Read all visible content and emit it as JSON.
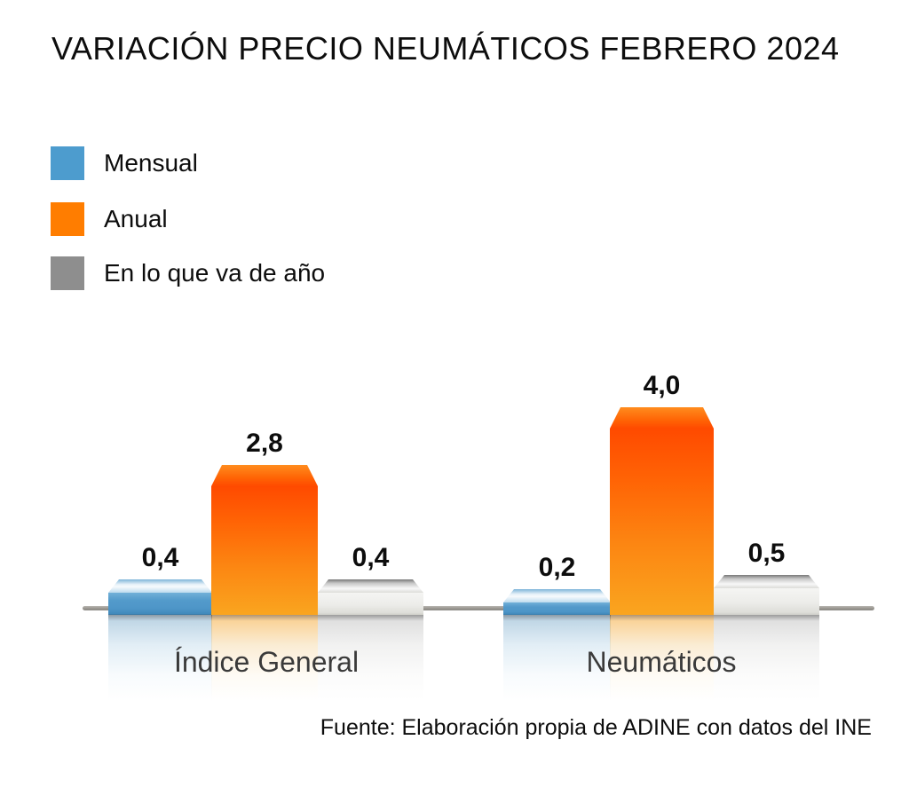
{
  "title": "VARIACIÓN PRECIO NEUMÁTICOS FEBRERO 2024",
  "legend": {
    "items": [
      {
        "label": "Mensual",
        "color": "#4D9CCE"
      },
      {
        "label": "Anual",
        "color": "#FF7D00"
      },
      {
        "label": "En lo que va de año",
        "color": "#8E8E8E"
      }
    ]
  },
  "source": "Fuente: Elaboración propia de ADINE con datos del INE",
  "chart_data": {
    "type": "bar",
    "title": "VARIACIÓN PRECIO NEUMÁTICOS FEBRERO 2024",
    "categories": [
      "Índice General",
      "Neumáticos"
    ],
    "series": [
      {
        "name": "Mensual",
        "color": "#4D9CCE",
        "values": [
          0.4,
          0.2
        ]
      },
      {
        "name": "Anual",
        "color": "#FF7D00",
        "values": [
          2.8,
          4.0
        ]
      },
      {
        "name": "En lo que va de año",
        "color": "#8E8E8E",
        "values": [
          0.4,
          0.5
        ]
      }
    ],
    "value_labels": [
      [
        "0,4",
        "2,8",
        "0,4"
      ],
      [
        "0,2",
        "4,0",
        "0,5"
      ]
    ],
    "xlabel": "",
    "ylabel": "",
    "grid": false,
    "legend_position": "top-left",
    "style": "3d-glossy-bars-with-reflection",
    "source": "Fuente: Elaboración propia de ADINE con datos del INE"
  }
}
